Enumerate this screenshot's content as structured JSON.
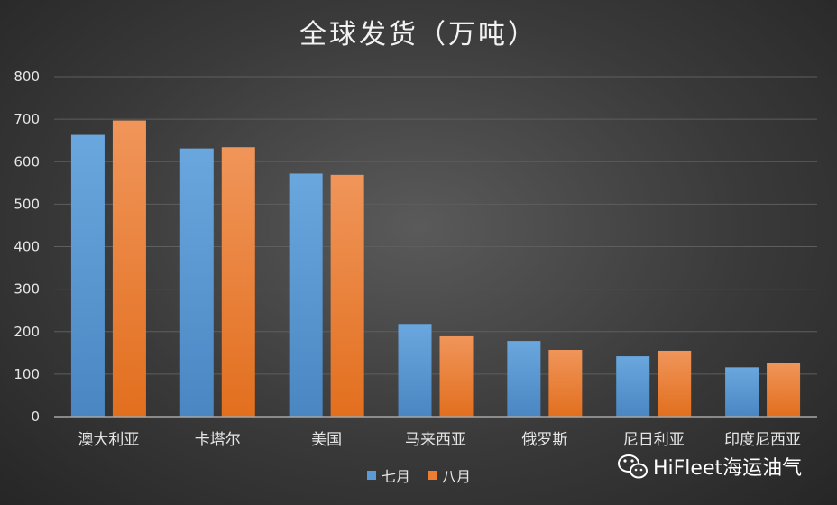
{
  "chart_data": {
    "type": "bar",
    "title": "全球发货（万吨）",
    "categories": [
      "澳大利亚",
      "卡塔尔",
      "美国",
      "马来西亚",
      "俄罗斯",
      "尼日利亚",
      "印度尼西亚"
    ],
    "series": [
      {
        "name": "七月",
        "values": [
          663,
          631,
          572,
          218,
          178,
          142,
          116
        ],
        "color": "#5b9bd5"
      },
      {
        "name": "八月",
        "values": [
          697,
          634,
          569,
          189,
          157,
          155,
          127
        ],
        "color": "#ed7d31"
      }
    ],
    "yticks": [
      "0",
      "100",
      "200",
      "300",
      "400",
      "500",
      "600",
      "700",
      "800"
    ],
    "ylim": [
      0,
      800
    ],
    "grid": true,
    "legend": "bottom"
  },
  "watermark": {
    "text": "HiFleet海运油气",
    "icon": "wechat-icon"
  }
}
